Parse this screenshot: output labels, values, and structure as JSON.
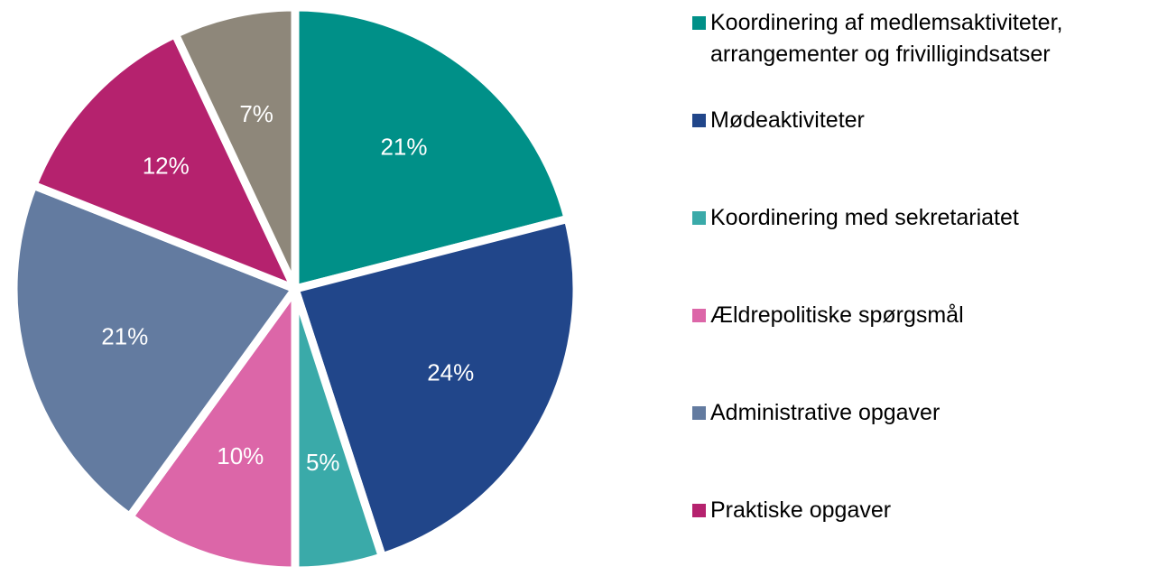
{
  "chart_data": {
    "type": "pie",
    "categories": [
      "Koordinering af medlemsaktiviteter, arrangementer og frivilligindsatser",
      "Mødeaktiviteter",
      "Koordinering med sekretariatet",
      "Ældrepolitiske spørgsmål",
      "Administrative opgaver",
      "Praktiske opgaver",
      null
    ],
    "values": [
      21,
      24,
      5,
      10,
      21,
      12,
      7
    ],
    "value_labels": [
      "21%",
      "24%",
      "5%",
      "10%",
      "21%",
      "12%",
      "7%"
    ],
    "colors": [
      "#009088",
      "#21468a",
      "#3aaaa9",
      "#dc66a8",
      "#637ba0",
      "#b5226e",
      "#8e877a"
    ],
    "legend": "right"
  }
}
